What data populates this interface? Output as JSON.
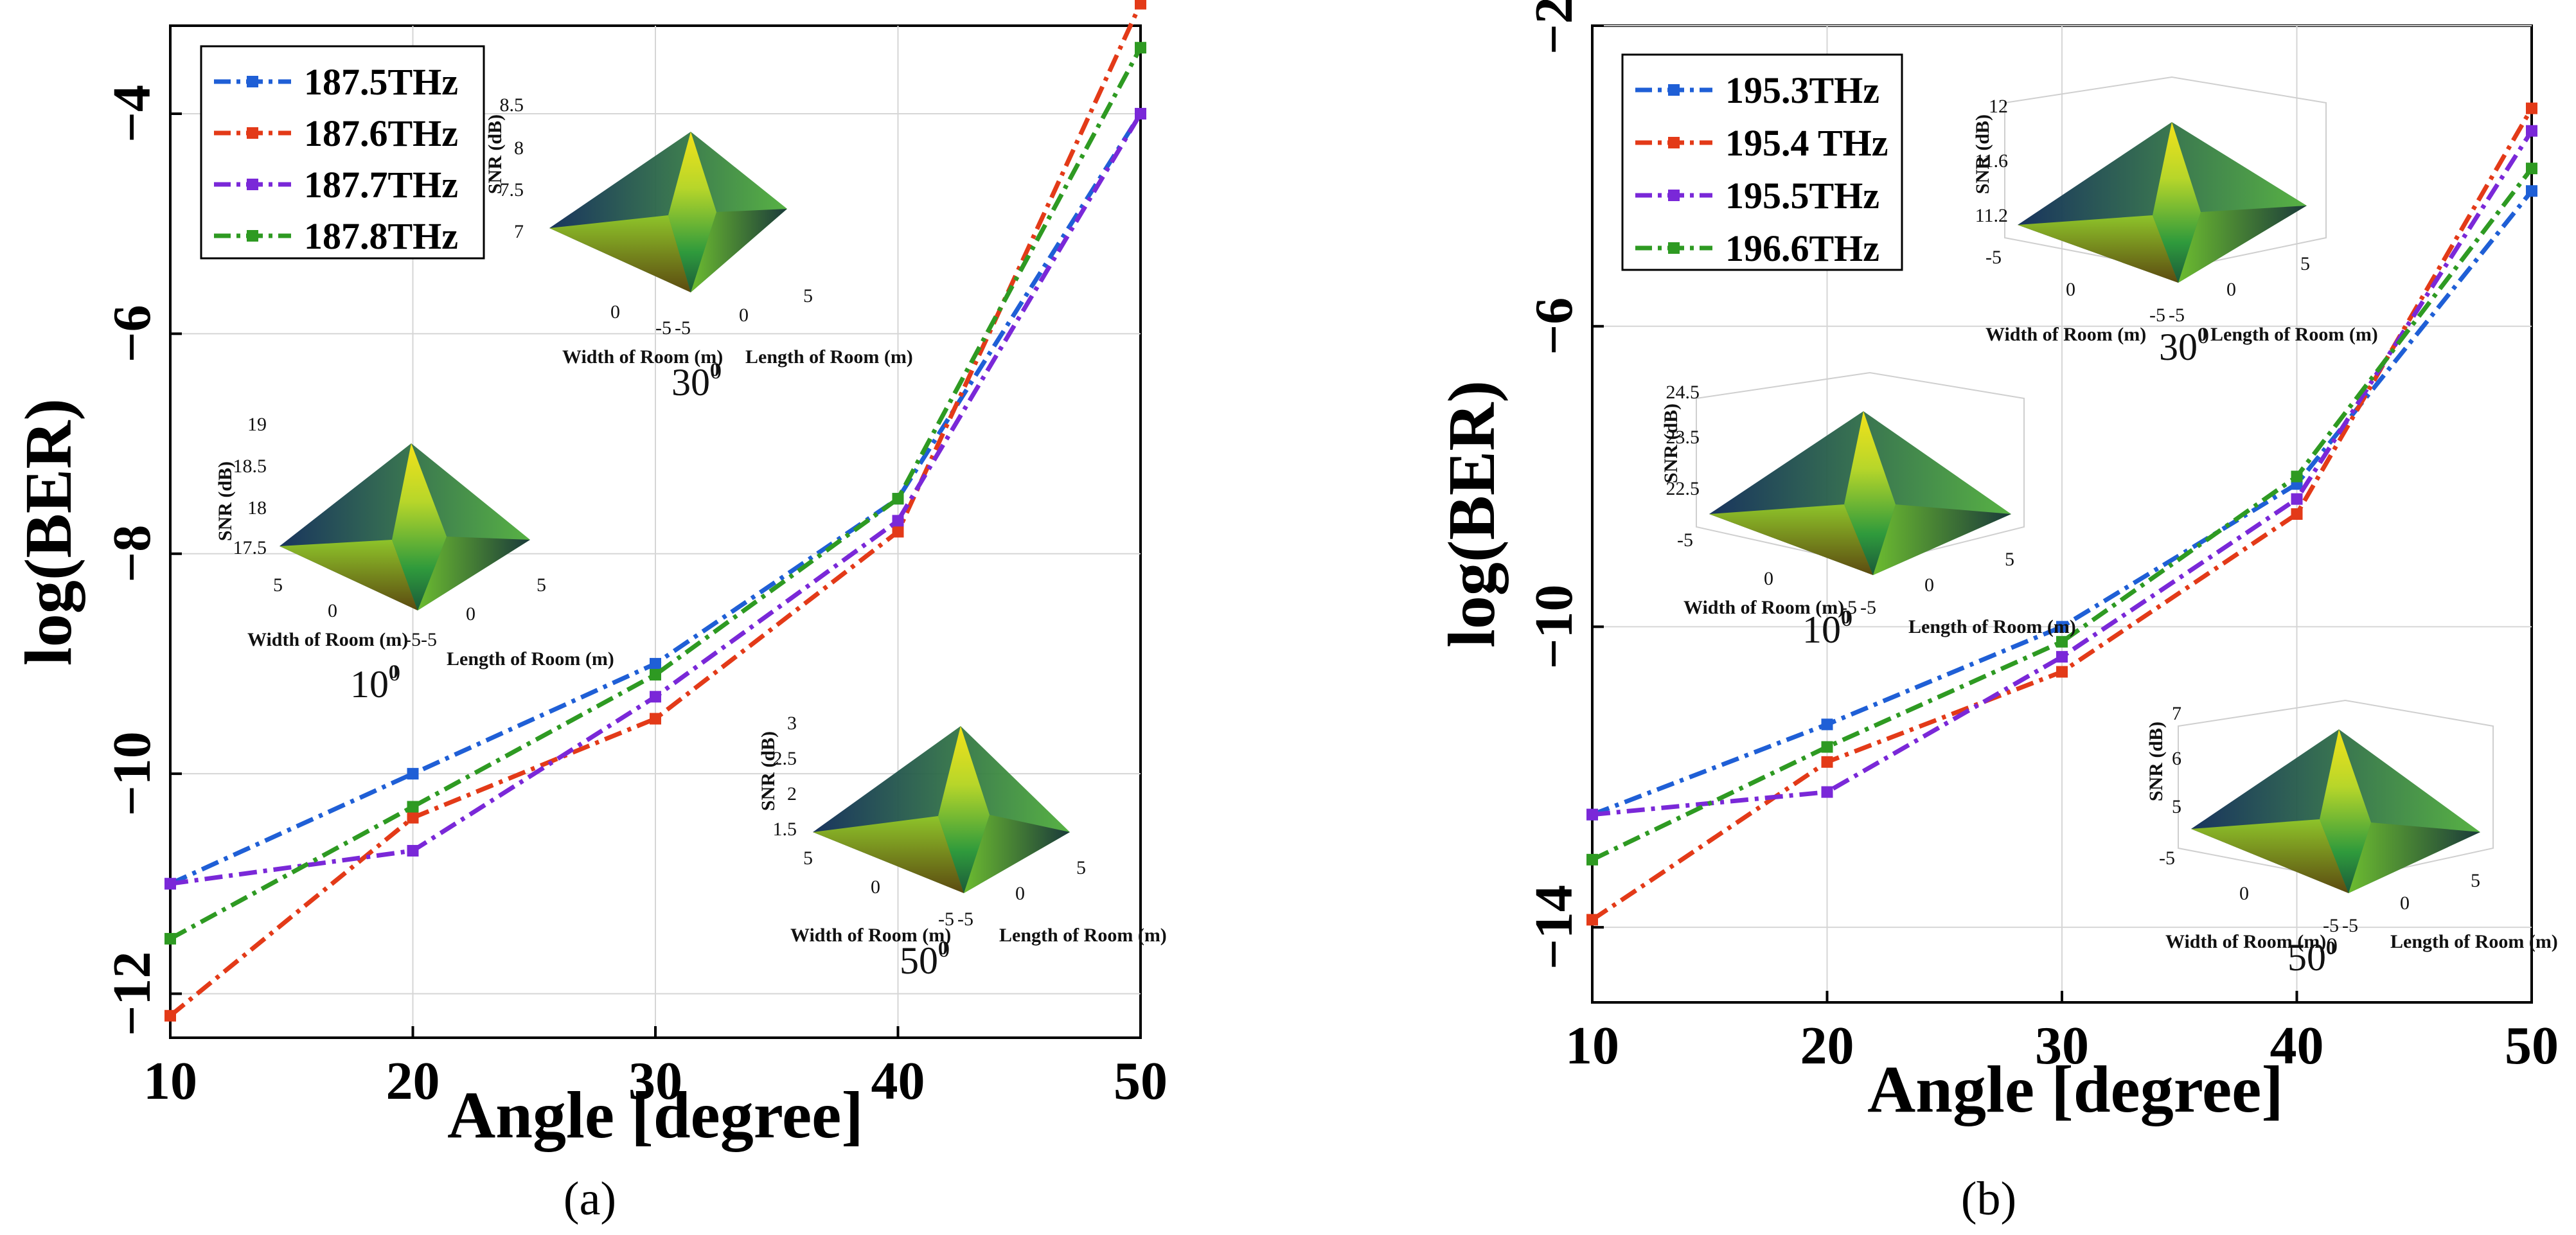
{
  "chart_data": [
    {
      "type": "line",
      "caption": "(a)",
      "xlabel": "Angle [degree]",
      "ylabel": "log(BER)",
      "x": [
        10,
        20,
        30,
        40,
        50
      ],
      "xlim": [
        10,
        50
      ],
      "ylim": [
        -12.4,
        -3.2
      ],
      "xticks": [
        "10",
        "20",
        "30",
        "40",
        "50"
      ],
      "yticks": [
        -4,
        -6,
        -8,
        -10,
        -12
      ],
      "ytick_labels": [
        "−4",
        "−6",
        "−8",
        "−10",
        "−12"
      ],
      "grid": true,
      "legend": "top-left",
      "series": [
        {
          "name": "187.5THz",
          "color": "#1f5fd6",
          "values": [
            -11.0,
            -10.0,
            -9.0,
            -7.5,
            -4.0
          ]
        },
        {
          "name": "187.6THz",
          "color": "#e33a18",
          "values": [
            -12.2,
            -10.4,
            -9.5,
            -7.8,
            -3.0
          ]
        },
        {
          "name": "187.7THz",
          "color": "#7a28d8",
          "values": [
            -11.0,
            -10.7,
            -9.3,
            -7.7,
            -4.0
          ]
        },
        {
          "name": "187.8THz",
          "color": "#2e9a22",
          "values": [
            -11.5,
            -10.3,
            -9.1,
            -7.5,
            -3.4
          ]
        }
      ],
      "insets": [
        {
          "angle_label": "30",
          "zlabel": "SNR (dB)",
          "zticks": [
            "8.5",
            "8",
            "7.5",
            "7"
          ],
          "xtitle": "Width of Room (m)",
          "ytitle": "Length of Room (m)",
          "w_ticks": [
            "0",
            "-5"
          ],
          "l_ticks": [
            "-5",
            "0",
            "5"
          ]
        },
        {
          "angle_label": "10",
          "zlabel": "SNR (dB)",
          "zticks": [
            "19",
            "18.5",
            "18",
            "17.5"
          ],
          "xtitle": "Width of Room (m)",
          "ytitle": "Length of Room (m)",
          "w_ticks": [
            "5",
            "0",
            "-5"
          ],
          "l_ticks": [
            "-5",
            "0",
            "5"
          ]
        },
        {
          "angle_label": "50",
          "zlabel": "SNR (dB)",
          "zticks": [
            "3",
            "2.5",
            "2",
            "1.5"
          ],
          "xtitle": "Width of Room (m)",
          "ytitle": "Length of Room (m)",
          "w_ticks": [
            "5",
            "0",
            "-5"
          ],
          "l_ticks": [
            "-5",
            "0",
            "5"
          ]
        }
      ]
    },
    {
      "type": "line",
      "caption": "(b)",
      "xlabel": "Angle [degree]",
      "ylabel": "log(BER)",
      "x": [
        10,
        20,
        30,
        40,
        50
      ],
      "xlim": [
        10,
        50
      ],
      "ylim": [
        -15.0,
        -2.0
      ],
      "xticks": [
        "10",
        "20",
        "30",
        "40",
        "50"
      ],
      "yticks": [
        -2,
        -6,
        -10,
        -14
      ],
      "ytick_labels": [
        "−2",
        "−6",
        "−10",
        "−14"
      ],
      "grid": true,
      "legend": "top-left",
      "series": [
        {
          "name": "195.3THz",
          "color": "#1f5fd6",
          "values": [
            -12.5,
            -11.3,
            -10.0,
            -8.1,
            -4.2
          ]
        },
        {
          "name": "195.4 THz",
          "color": "#e33a18",
          "values": [
            -13.9,
            -11.8,
            -10.6,
            -8.5,
            -3.1
          ]
        },
        {
          "name": "195.5THz",
          "color": "#7a28d8",
          "values": [
            -12.5,
            -12.2,
            -10.4,
            -8.3,
            -3.4
          ]
        },
        {
          "name": "196.6THz",
          "color": "#2e9a22",
          "values": [
            -13.1,
            -11.6,
            -10.2,
            -8.0,
            -3.9
          ]
        }
      ],
      "insets": [
        {
          "angle_label": "30",
          "zlabel": "SNR (dB)",
          "zticks": [
            "12",
            "11.6",
            "11.2"
          ],
          "xtitle": "Width of Room (m)",
          "ytitle": "Length of Room (m)",
          "w_ticks": [
            "-5",
            "0",
            "-5"
          ],
          "l_ticks": [
            "-5",
            "0",
            "5"
          ]
        },
        {
          "angle_label": "10",
          "zlabel": "SNR (dB)",
          "zticks": [
            "24.5",
            "23.5",
            "22.5"
          ],
          "xtitle": "Width of Room (m)",
          "ytitle": "Length of Room (m)",
          "w_ticks": [
            "-5",
            "0",
            "-5"
          ],
          "l_ticks": [
            "-5",
            "0",
            "5"
          ]
        },
        {
          "angle_label": "50",
          "zlabel": "SNR (dB)",
          "zticks": [
            "7",
            "6",
            "5"
          ],
          "xtitle": "Width of Room (m)",
          "ytitle": "Length of Room (m)",
          "w_ticks": [
            "-5",
            "0",
            "-5"
          ],
          "l_ticks": [
            "-5",
            "0",
            "5"
          ]
        }
      ]
    }
  ]
}
